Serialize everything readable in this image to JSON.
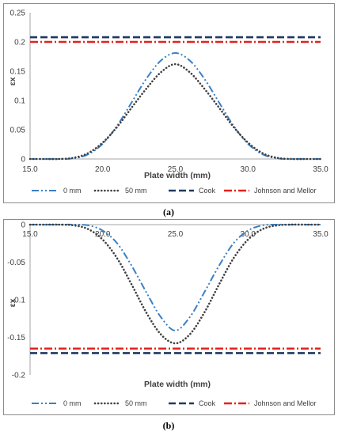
{
  "colors": {
    "zero_mm": "#3a7fc4",
    "fifty_mm": "#404040",
    "cook": "#1f3a60",
    "johnson_mellor": "#e3221c",
    "frame": "#8c8c8c",
    "axis": "#a6a6a6"
  },
  "chart_data": [
    {
      "type": "line",
      "caption": "(a)",
      "xlabel": "Plate width (mm)",
      "ylabel": "εx",
      "xlim": [
        15,
        35
      ],
      "ylim": [
        0,
        0.25
      ],
      "x_ticks": [
        "15.0",
        "20.0",
        "25.0",
        "30.0",
        "35.0"
      ],
      "y_ticks": [
        "0",
        "0.05",
        "0.1",
        "0.15",
        "0.2",
        "0.25"
      ],
      "series": [
        {
          "name": "0 mm",
          "x": [
            15,
            16,
            17,
            18,
            19,
            20,
            21,
            22,
            23,
            24,
            25,
            26,
            27,
            28,
            29,
            30,
            31,
            32,
            33,
            34,
            35
          ],
          "values": [
            0,
            0,
            0,
            0.001,
            0.008,
            0.026,
            0.057,
            0.097,
            0.137,
            0.168,
            0.181,
            0.168,
            0.137,
            0.097,
            0.057,
            0.026,
            0.008,
            0.001,
            0,
            0,
            0
          ]
        },
        {
          "name": "50 mm",
          "x": [
            15,
            16,
            17,
            18,
            19,
            20,
            21,
            22,
            23,
            24,
            25,
            26,
            27,
            28,
            29,
            30,
            31,
            32,
            33,
            34,
            35
          ],
          "values": [
            0,
            0,
            0,
            0.002,
            0.01,
            0.028,
            0.055,
            0.088,
            0.12,
            0.148,
            0.162,
            0.148,
            0.12,
            0.088,
            0.055,
            0.028,
            0.01,
            0.002,
            0,
            0,
            0
          ]
        },
        {
          "name": "Cook",
          "x": [
            15,
            35
          ],
          "values": [
            0.208,
            0.208
          ]
        },
        {
          "name": "Johnson and Mellor",
          "x": [
            15,
            35
          ],
          "values": [
            0.2,
            0.2
          ]
        }
      ]
    },
    {
      "type": "line",
      "caption": "(b)",
      "xlabel": "Plate width (mm)",
      "ylabel": "εx",
      "xlim": [
        15,
        35
      ],
      "ylim": [
        -0.2,
        0
      ],
      "x_ticks": [
        "15.0",
        "20.0",
        "25.0",
        "30.0",
        "35.0"
      ],
      "y_ticks": [
        "0",
        "-0.05",
        "-0.1",
        "-0.15",
        "-0.2"
      ],
      "series": [
        {
          "name": "0 mm",
          "x": [
            15,
            16,
            17,
            18,
            19,
            20,
            21,
            22,
            23,
            24,
            25,
            26,
            27,
            28,
            29,
            30,
            31,
            32,
            33,
            34,
            35
          ],
          "values": [
            0,
            0,
            0,
            0,
            -0.001,
            -0.008,
            -0.025,
            -0.055,
            -0.09,
            -0.123,
            -0.141,
            -0.123,
            -0.09,
            -0.055,
            -0.025,
            -0.008,
            -0.001,
            0,
            0,
            0,
            0
          ]
        },
        {
          "name": "50 mm",
          "x": [
            15,
            16,
            17,
            18,
            19,
            20,
            21,
            22,
            23,
            24,
            25,
            26,
            27,
            28,
            29,
            30,
            31,
            32,
            33,
            34,
            35
          ],
          "values": [
            0,
            0,
            0,
            -0.001,
            -0.006,
            -0.02,
            -0.045,
            -0.08,
            -0.117,
            -0.146,
            -0.158,
            -0.146,
            -0.117,
            -0.08,
            -0.045,
            -0.02,
            -0.006,
            -0.001,
            0,
            0,
            0
          ]
        },
        {
          "name": "Cook",
          "x": [
            15,
            35
          ],
          "values": [
            -0.171,
            -0.171
          ]
        },
        {
          "name": "Johnson and Mellor",
          "x": [
            15,
            35
          ],
          "values": [
            -0.165,
            -0.165
          ]
        }
      ]
    }
  ]
}
